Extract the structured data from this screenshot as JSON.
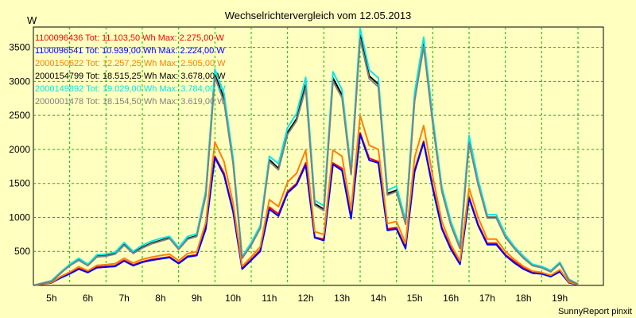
{
  "chart_data": {
    "type": "line",
    "title": "Wechselrichtervergleich vom 12.05.2013",
    "ylabel": "W",
    "xlabel": "",
    "footer": "SunnyReport pinxit",
    "ylim": [
      0,
      3800
    ],
    "xlim": [
      4.5,
      20.2
    ],
    "yticks": [
      500,
      1000,
      1500,
      2000,
      2500,
      3000,
      3500
    ],
    "xticks": [
      5,
      6,
      7,
      8,
      9,
      10,
      11,
      12,
      13,
      14,
      15,
      16,
      17,
      18,
      19
    ],
    "xtick_labels": [
      "5h",
      "6h",
      "7h",
      "8h",
      "9h",
      "10h",
      "11h",
      "12h",
      "13h",
      "14h",
      "15h",
      "16h",
      "17h",
      "18h",
      "19h"
    ],
    "grid": true,
    "legend_position": "top-left",
    "x": [
      4.5,
      4.75,
      5,
      5.25,
      5.5,
      5.75,
      6,
      6.25,
      6.5,
      6.75,
      7,
      7.25,
      7.5,
      7.75,
      8,
      8.25,
      8.5,
      8.75,
      9,
      9.25,
      9.5,
      9.75,
      10,
      10.25,
      10.5,
      10.75,
      11,
      11.25,
      11.5,
      11.75,
      12,
      12.25,
      12.5,
      12.75,
      13,
      13.25,
      13.5,
      13.75,
      14,
      14.25,
      14.5,
      14.75,
      15,
      15.25,
      15.5,
      15.75,
      16,
      16.25,
      16.5,
      16.75,
      17,
      17.25,
      17.5,
      17.75,
      18,
      18.25,
      18.5,
      18.75,
      19,
      19.25,
      19.5
    ],
    "series": [
      {
        "name": "1100096436",
        "label": "Tot: 11.103,50 Wh Max: 2.275,00 W",
        "color": "#ff0000",
        "values": [
          0,
          20,
          40,
          120,
          180,
          250,
          200,
          270,
          280,
          290,
          370,
          300,
          350,
          380,
          400,
          420,
          330,
          430,
          450,
          850,
          1900,
          1650,
          1100,
          250,
          380,
          520,
          1150,
          1050,
          1380,
          1500,
          1800,
          710,
          680,
          1800,
          1720,
          1000,
          2240,
          1870,
          1820,
          830,
          850,
          560,
          1700,
          2120,
          1450,
          850,
          550,
          330,
          1300,
          900,
          620,
          620,
          450,
          350,
          260,
          190,
          180,
          140,
          210,
          50,
          10
        ]
      },
      {
        "name": "1100096541",
        "label": "Tot: 10.939,00 Wh Max: 2.224,00 W",
        "color": "#0000ff",
        "values": [
          0,
          20,
          40,
          110,
          170,
          240,
          190,
          260,
          270,
          280,
          360,
          290,
          340,
          370,
          390,
          410,
          320,
          420,
          440,
          830,
          1880,
          1620,
          1080,
          240,
          370,
          500,
          1120,
          1020,
          1360,
          1480,
          1770,
          700,
          660,
          1780,
          1690,
          980,
          2220,
          1840,
          1800,
          810,
          830,
          540,
          1670,
          2100,
          1420,
          830,
          530,
          310,
          1280,
          880,
          600,
          600,
          440,
          330,
          240,
          180,
          170,
          130,
          200,
          40,
          10
        ]
      },
      {
        "name": "2000150622",
        "label": "Tot: 12.257,25 Wh Max: 2.505,00 W",
        "color": "#ff8000",
        "values": [
          0,
          20,
          45,
          130,
          195,
          275,
          215,
          295,
          305,
          320,
          400,
          330,
          385,
          415,
          440,
          460,
          365,
          470,
          495,
          930,
          2110,
          1820,
          1210,
          280,
          420,
          570,
          1260,
          1160,
          1520,
          1650,
          1990,
          790,
          750,
          1990,
          1900,
          1110,
          2500,
          2060,
          2000,
          910,
          940,
          620,
          1880,
          2350,
          1600,
          940,
          600,
          360,
          1430,
          1000,
          680,
          680,
          500,
          380,
          280,
          210,
          190,
          150,
          230,
          50,
          10
        ]
      },
      {
        "name": "2000154799",
        "label": "Tot: 18.515,25 Wh Max: 3.678,00 W",
        "color": "#000000",
        "values": [
          0,
          30,
          60,
          180,
          300,
          380,
          300,
          430,
          440,
          470,
          600,
          480,
          560,
          620,
          660,
          700,
          540,
          690,
          730,
          1350,
          3100,
          2750,
          1820,
          400,
          600,
          850,
          1850,
          1720,
          2250,
          2450,
          2950,
          1200,
          1120,
          3050,
          2800,
          1650,
          3680,
          3080,
          2960,
          1350,
          1400,
          920,
          2750,
          3560,
          2400,
          1400,
          900,
          550,
          2120,
          1500,
          1000,
          1000,
          720,
          550,
          410,
          300,
          270,
          210,
          330,
          80,
          20
        ]
      },
      {
        "name": "2000149892",
        "label": "Tot: 19.029,00 Wh Max: 3.784,00 W",
        "color": "#00e8e8",
        "values": [
          0,
          35,
          70,
          195,
          310,
          400,
          310,
          450,
          460,
          490,
          630,
          500,
          590,
          650,
          690,
          720,
          560,
          720,
          760,
          1400,
          3180,
          2820,
          1880,
          420,
          630,
          880,
          1900,
          1790,
          2320,
          2530,
          3060,
          1250,
          1170,
          3140,
          2880,
          1700,
          3780,
          3170,
          3050,
          1400,
          1460,
          960,
          2830,
          3650,
          2470,
          1450,
          940,
          580,
          2200,
          1560,
          1040,
          1040,
          750,
          570,
          430,
          310,
          280,
          220,
          340,
          90,
          20
        ]
      },
      {
        "name": "2000001478",
        "label": "Tot: 18.154,50 Wh Max: 3.619,00 W",
        "color": "#808080",
        "values": [
          0,
          30,
          60,
          180,
          290,
          370,
          290,
          420,
          430,
          460,
          590,
          470,
          550,
          610,
          650,
          690,
          530,
          680,
          720,
          1320,
          3060,
          2700,
          1790,
          400,
          590,
          840,
          1820,
          1700,
          2220,
          2420,
          2900,
          1180,
          1100,
          3000,
          2760,
          1630,
          3620,
          3040,
          2920,
          1330,
          1380,
          900,
          2710,
          3510,
          2370,
          1380,
          880,
          540,
          2090,
          1480,
          990,
          990,
          710,
          540,
          400,
          290,
          260,
          200,
          320,
          80,
          20
        ]
      }
    ]
  }
}
